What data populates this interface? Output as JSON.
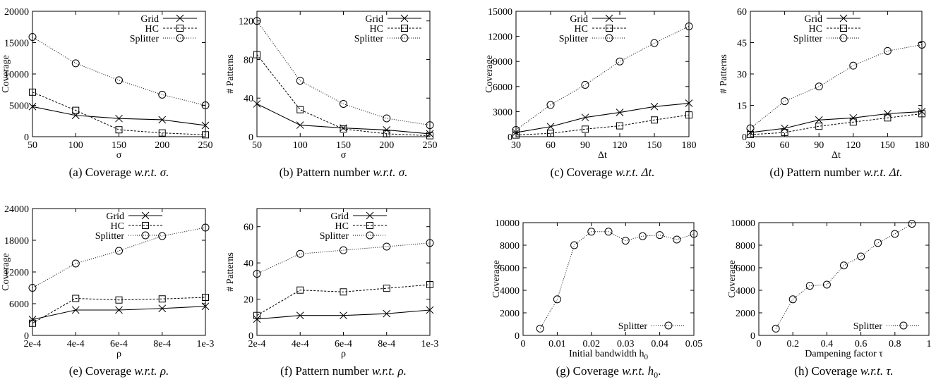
{
  "chart_data": [
    {
      "type": "line",
      "caption": "(a) Coverage w.r.t. σ.",
      "x": [
        50,
        100,
        150,
        200,
        250
      ],
      "xticks": [
        "50",
        "100",
        "150",
        "200",
        "250"
      ],
      "xlim": [
        50,
        250
      ],
      "ylabel": "Coverage",
      "xlabel": "σ",
      "ylim": [
        0,
        20000
      ],
      "yticks": [
        "0",
        "5000",
        "10000",
        "15000",
        "20000"
      ],
      "legend": "top-right",
      "series": [
        {
          "name": "Grid",
          "marker": "x",
          "values": [
            4800,
            3400,
            2900,
            2700,
            1800
          ]
        },
        {
          "name": "HC",
          "marker": "square",
          "values": [
            7100,
            4200,
            1100,
            600,
            300
          ]
        },
        {
          "name": "Splitter",
          "marker": "circle",
          "values": [
            15900,
            11700,
            9000,
            6700,
            5000
          ]
        }
      ]
    },
    {
      "type": "line",
      "caption": "(b) Pattern number w.r.t. σ.",
      "x": [
        50,
        100,
        150,
        200,
        250
      ],
      "xticks": [
        "50",
        "100",
        "150",
        "200",
        "250"
      ],
      "xlim": [
        50,
        250
      ],
      "ylabel": "# Patterns",
      "xlabel": "σ",
      "ylim": [
        0,
        130
      ],
      "yticks": [
        "0",
        "40",
        "80",
        "120"
      ],
      "legend": "top-right",
      "series": [
        {
          "name": "Grid",
          "marker": "x",
          "values": [
            34,
            12,
            9,
            7,
            3
          ]
        },
        {
          "name": "HC",
          "marker": "square",
          "values": [
            85,
            28,
            8,
            3,
            1
          ]
        },
        {
          "name": "Splitter",
          "marker": "circle",
          "values": [
            120,
            58,
            34,
            19,
            12
          ]
        }
      ]
    },
    {
      "type": "line",
      "caption": "(c) Coverage w.r.t. Δt.",
      "x": [
        30,
        60,
        90,
        120,
        150,
        180
      ],
      "xticks": [
        "30",
        "60",
        "90",
        "120",
        "150",
        "180"
      ],
      "xlim": [
        30,
        180
      ],
      "ylabel": "Coverage",
      "xlabel": "Δt",
      "ylim": [
        0,
        15000
      ],
      "yticks": [
        "0",
        "3000",
        "6000",
        "9000",
        "12000",
        "15000"
      ],
      "legend": "top-left",
      "series": [
        {
          "name": "Grid",
          "marker": "x",
          "values": [
            500,
            1200,
            2300,
            2900,
            3600,
            4000
          ]
        },
        {
          "name": "HC",
          "marker": "square",
          "values": [
            200,
            400,
            900,
            1300,
            2000,
            2600
          ]
        },
        {
          "name": "Splitter",
          "marker": "circle",
          "values": [
            800,
            3800,
            6200,
            9000,
            11200,
            13200
          ]
        }
      ]
    },
    {
      "type": "line",
      "caption": "(d) Pattern number w.r.t. Δt.",
      "x": [
        30,
        60,
        90,
        120,
        150,
        180
      ],
      "xticks": [
        "30",
        "60",
        "90",
        "120",
        "150",
        "180"
      ],
      "xlim": [
        30,
        180
      ],
      "ylabel": "# Patterns",
      "xlabel": "Δt",
      "ylim": [
        0,
        60
      ],
      "yticks": [
        "0",
        "15",
        "30",
        "45",
        "60"
      ],
      "legend": "top-left",
      "series": [
        {
          "name": "Grid",
          "marker": "x",
          "values": [
            2,
            4,
            8,
            9,
            11,
            12
          ]
        },
        {
          "name": "HC",
          "marker": "square",
          "values": [
            1,
            2,
            5,
            7,
            9,
            11
          ]
        },
        {
          "name": "Splitter",
          "marker": "circle",
          "values": [
            4,
            17,
            24,
            34,
            41,
            44
          ]
        }
      ]
    },
    {
      "type": "line",
      "caption": "(e) Coverage w.r.t. ρ.",
      "x": [
        0.0002,
        0.0004,
        0.0006,
        0.0008,
        0.001
      ],
      "xticks": [
        "2e-4",
        "4e-4",
        "6e-4",
        "8e-4",
        "1e-3"
      ],
      "xlim": [
        0.0002,
        0.001
      ],
      "ylabel": "Coverage",
      "xlabel": "ρ",
      "ylim": [
        0,
        24000
      ],
      "yticks": [
        "0",
        "6000",
        "12000",
        "18000",
        "24000"
      ],
      "legend": "top-center",
      "series": [
        {
          "name": "Grid",
          "marker": "x",
          "values": [
            3000,
            4800,
            4800,
            5100,
            5500
          ]
        },
        {
          "name": "HC",
          "marker": "square",
          "values": [
            2300,
            7000,
            6700,
            6900,
            7200
          ]
        },
        {
          "name": "Splitter",
          "marker": "circle",
          "values": [
            9000,
            13600,
            16000,
            18800,
            20400
          ]
        }
      ]
    },
    {
      "type": "line",
      "caption": "(f) Pattern number w.r.t. ρ.",
      "x": [
        0.0002,
        0.0004,
        0.0006,
        0.0008,
        0.001
      ],
      "xticks": [
        "2e-4",
        "4e-4",
        "6e-4",
        "8e-4",
        "1e-3"
      ],
      "xlim": [
        0.0002,
        0.001
      ],
      "ylabel": "# Patterns",
      "xlabel": "ρ",
      "ylim": [
        0,
        70
      ],
      "yticks": [
        "0",
        "20",
        "40",
        "60"
      ],
      "legend": "top-center",
      "series": [
        {
          "name": "Grid",
          "marker": "x",
          "values": [
            9,
            11,
            11,
            12,
            14
          ]
        },
        {
          "name": "HC",
          "marker": "square",
          "values": [
            11,
            25,
            24,
            26,
            28
          ]
        },
        {
          "name": "Splitter",
          "marker": "circle",
          "values": [
            34,
            45,
            47,
            49,
            51
          ]
        }
      ]
    },
    {
      "type": "line",
      "caption": "(g) Coverage w.r.t. h0.",
      "x": [
        0.005,
        0.01,
        0.015,
        0.02,
        0.025,
        0.03,
        0.035,
        0.04,
        0.045,
        0.05
      ],
      "xticks": [
        "0",
        "0.01",
        "0.02",
        "0.03",
        "0.04",
        "0.05"
      ],
      "xlim": [
        0,
        0.05
      ],
      "ylabel": "Coverage",
      "xlabel": "Initial bandwidth h0",
      "ylim": [
        0,
        10000
      ],
      "yticks": [
        "0",
        "2000",
        "4000",
        "6000",
        "8000",
        "10000"
      ],
      "legend": "bottom-right",
      "series": [
        {
          "name": "Splitter",
          "marker": "circle",
          "values": [
            600,
            3200,
            8000,
            9200,
            9200,
            8400,
            8800,
            8900,
            8500,
            9000
          ]
        }
      ]
    },
    {
      "type": "line",
      "caption": "(h) Coverage w.r.t. τ.",
      "x": [
        0.1,
        0.2,
        0.3,
        0.4,
        0.5,
        0.6,
        0.7,
        0.8,
        0.9
      ],
      "xticks": [
        "0",
        "0.2",
        "0.4",
        "0.6",
        "0.8",
        "1"
      ],
      "xlim": [
        0,
        1
      ],
      "ylabel": "Coverage",
      "xlabel": "Dampening factor τ",
      "ylim": [
        0,
        10000
      ],
      "yticks": [
        "0",
        "2000",
        "4000",
        "6000",
        "8000",
        "10000"
      ],
      "legend": "bottom-right",
      "series": [
        {
          "name": "Splitter",
          "marker": "circle",
          "values": [
            600,
            3200,
            4400,
            4500,
            6200,
            7000,
            8200,
            9000,
            9900
          ]
        }
      ]
    }
  ]
}
